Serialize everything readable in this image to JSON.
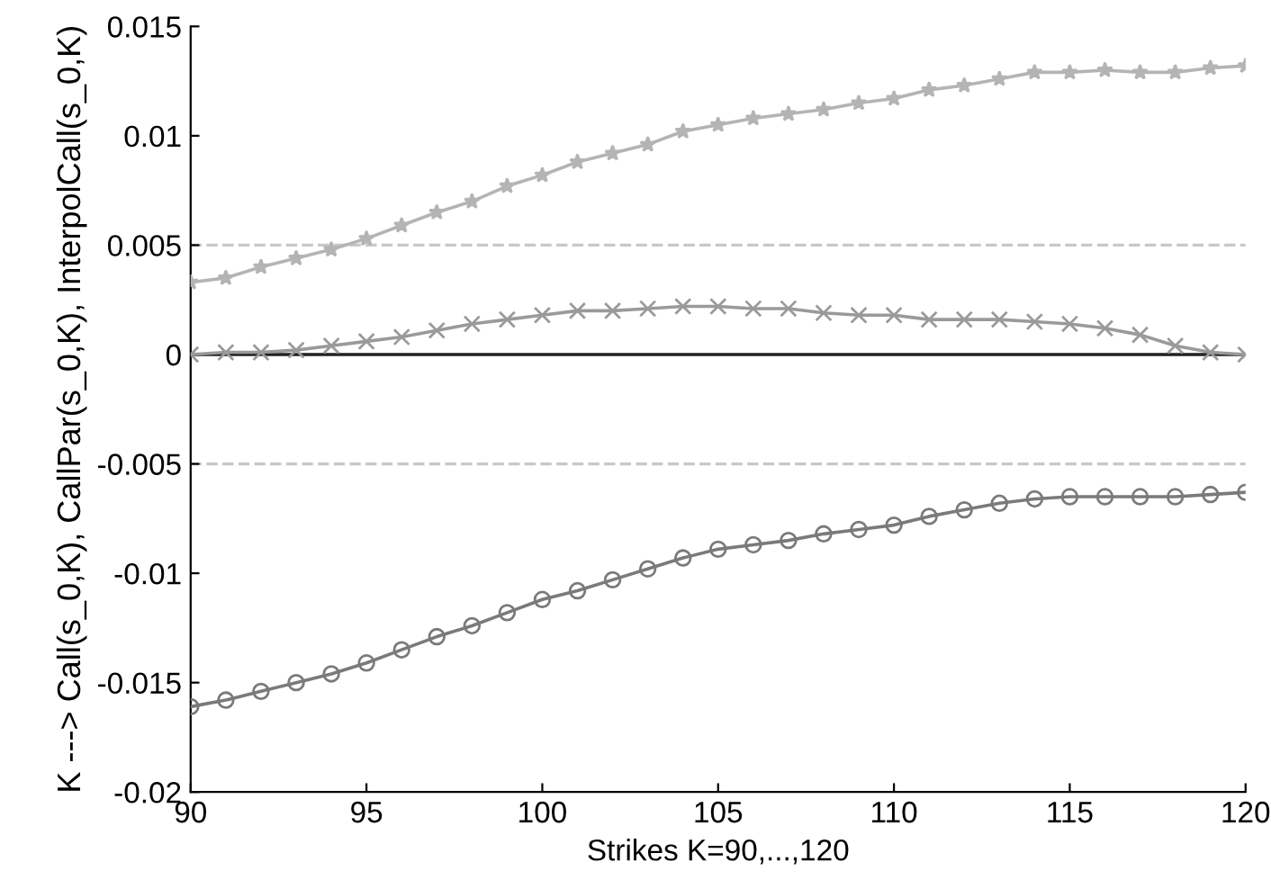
{
  "chart_data": {
    "type": "line",
    "xlabel": "Strikes K=90,...,120",
    "ylabel": "K ---> Call(s_0,K), CallPar(s_0,K), InterpolCall(s_0,K)",
    "x": [
      90,
      91,
      92,
      93,
      94,
      95,
      96,
      97,
      98,
      99,
      100,
      101,
      102,
      103,
      104,
      105,
      106,
      107,
      108,
      109,
      110,
      111,
      112,
      113,
      114,
      115,
      116,
      117,
      118,
      119,
      120
    ],
    "series": [
      {
        "color": "#b4b4b4",
        "marker": "star",
        "values": [
          0.0033,
          0.0035,
          0.004,
          0.0044,
          0.0048,
          0.0053,
          0.0059,
          0.0065,
          0.007,
          0.0077,
          0.0082,
          0.0088,
          0.0092,
          0.0096,
          0.0102,
          0.0105,
          0.0108,
          0.011,
          0.0112,
          0.0115,
          0.0117,
          0.0121,
          0.0123,
          0.0126,
          0.0129,
          0.0129,
          0.013,
          0.0129,
          0.0129,
          0.0131,
          0.0132
        ]
      },
      {
        "color": "#9a9a9a",
        "marker": "cross",
        "values": [
          0,
          0.0001,
          0.0001,
          0.0002,
          0.0004,
          0.0006,
          0.0008,
          0.0011,
          0.0014,
          0.0016,
          0.0018,
          0.002,
          0.002,
          0.0021,
          0.0022,
          0.0022,
          0.0021,
          0.0021,
          0.0019,
          0.0018,
          0.0018,
          0.0016,
          0.0016,
          0.0016,
          0.0015,
          0.0014,
          0.0012,
          0.0009,
          0.0004,
          0.0001,
          0
        ]
      },
      {
        "color": "#7a7a7a",
        "marker": "circle",
        "values": [
          -0.0161,
          -0.0158,
          -0.0154,
          -0.015,
          -0.0146,
          -0.0141,
          -0.0135,
          -0.0129,
          -0.0124,
          -0.0118,
          -0.0112,
          -0.0108,
          -0.0103,
          -0.0098,
          -0.0093,
          -0.0089,
          -0.0087,
          -0.0085,
          -0.0082,
          -0.008,
          -0.0078,
          -0.0074,
          -0.0071,
          -0.0068,
          -0.0066,
          -0.0065,
          -0.0065,
          -0.0065,
          -0.0065,
          -0.0064,
          -0.0063
        ]
      }
    ],
    "ref_lines": [
      {
        "axis": "y",
        "value": 0,
        "color": "#222222",
        "line_style": "solid"
      },
      {
        "axis": "y",
        "value": 0.005,
        "color": "#c8c8c8",
        "line_style": "dashed"
      },
      {
        "axis": "y",
        "value": -0.005,
        "color": "#c8c8c8",
        "line_style": "dashed"
      }
    ],
    "xlim": [
      90,
      120
    ],
    "xticks": [
      90,
      95,
      100,
      105,
      110,
      115,
      120
    ],
    "ylim": [
      -0.02,
      0.015
    ],
    "yticks": [
      -0.02,
      -0.015,
      -0.01,
      -0.005,
      0,
      0.005,
      0.01,
      0.015
    ],
    "grid": false,
    "legend": false,
    "line_style": "solid"
  }
}
